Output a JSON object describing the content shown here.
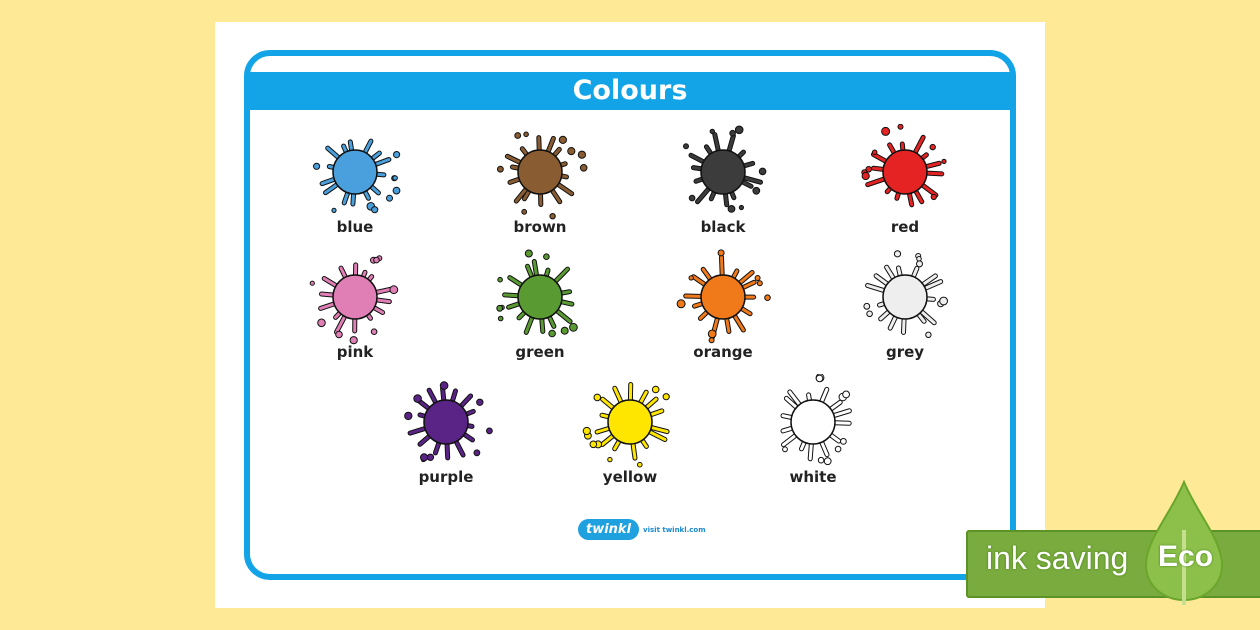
{
  "title": "Colours",
  "colours": [
    {
      "label": "blue",
      "color": "#4aa0dc"
    },
    {
      "label": "brown",
      "color": "#8a5c32"
    },
    {
      "label": "black",
      "color": "#3c3c3c"
    },
    {
      "label": "red",
      "color": "#e52322"
    },
    {
      "label": "pink",
      "color": "#e07fb6"
    },
    {
      "label": "green",
      "color": "#5a9a32"
    },
    {
      "label": "orange",
      "color": "#f07a1a"
    },
    {
      "label": "grey",
      "color": "#eeeeee"
    },
    {
      "label": "purple",
      "color": "#5a2486"
    },
    {
      "label": "yellow",
      "color": "#ffe600"
    },
    {
      "label": "white",
      "color": "#ffffff"
    }
  ],
  "logo": {
    "brand": "twinkl",
    "visit": "visit twinkl.com"
  },
  "eco": {
    "label": "ink saving",
    "badge": "Eco"
  }
}
